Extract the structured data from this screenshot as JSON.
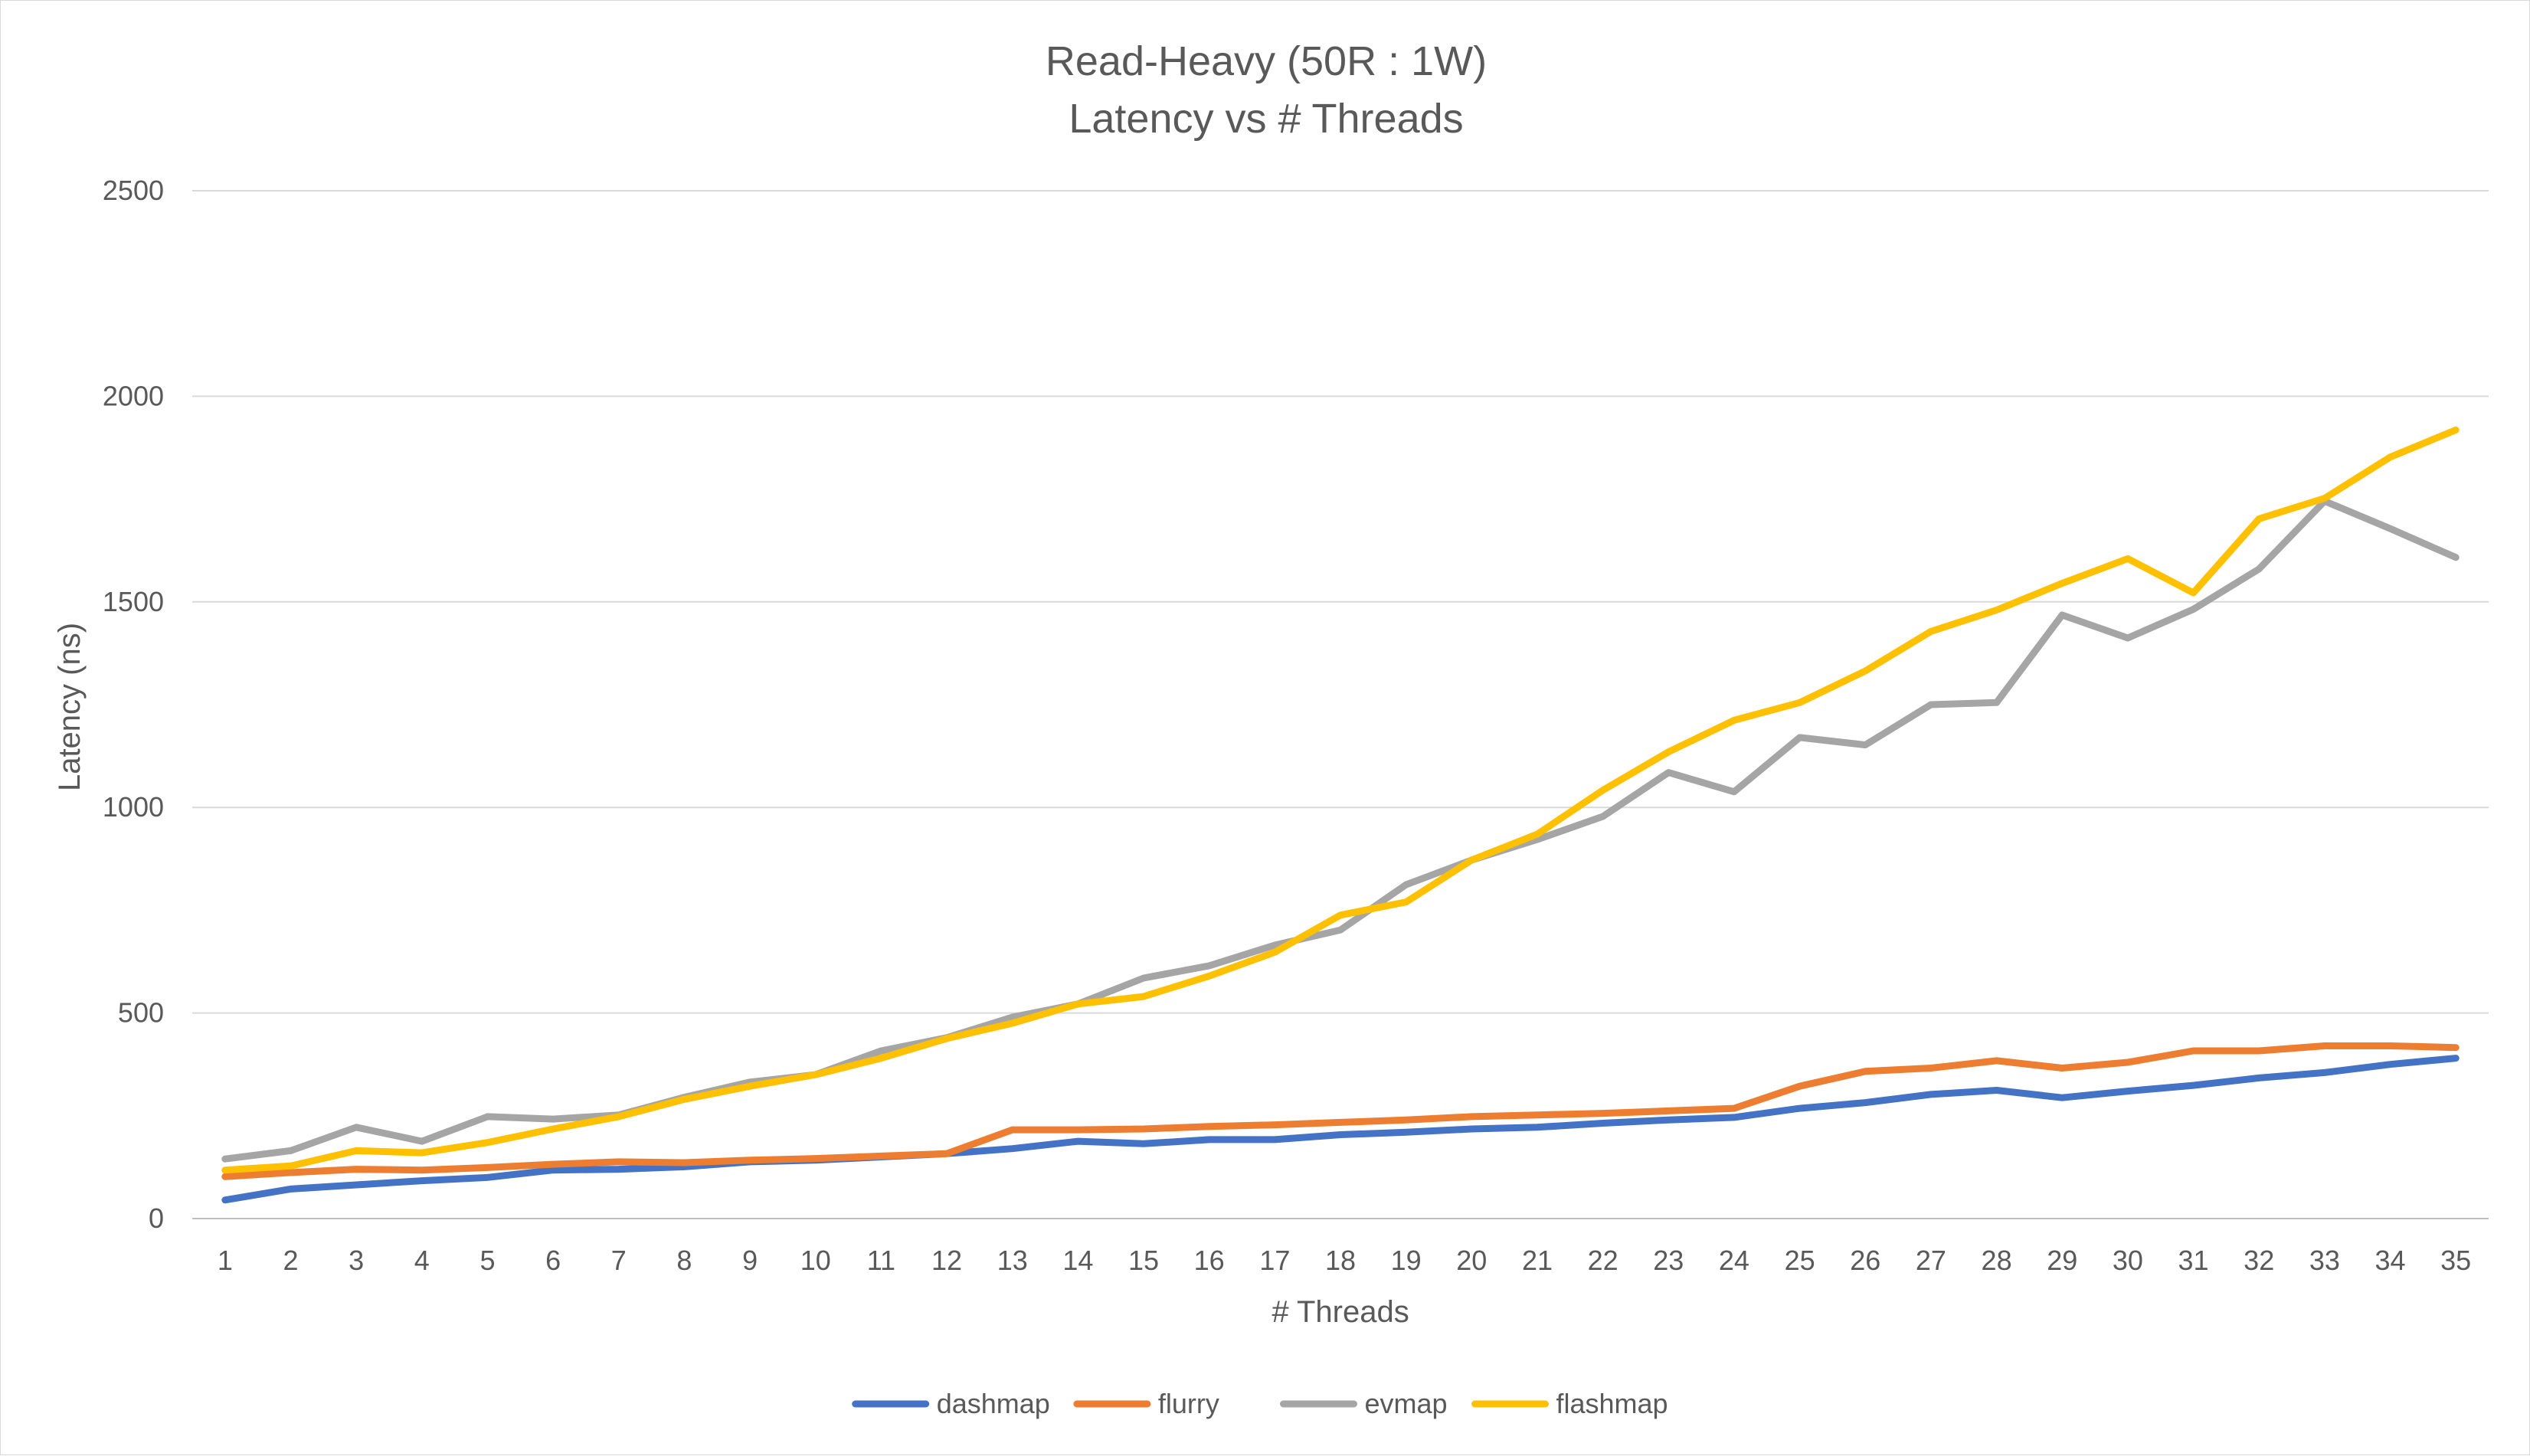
{
  "chart_data": {
    "type": "line",
    "title": "Read-Heavy (50R : 1W)",
    "subtitle": "Latency vs # Threads",
    "xlabel": "# Threads",
    "ylabel": "Latency (ns)",
    "ylim": [
      0,
      2500
    ],
    "yticks": [
      "0",
      "500",
      "1000",
      "1500",
      "2000",
      "2500"
    ],
    "grid": true,
    "legend_position": "bottom",
    "categories": [
      "1",
      "2",
      "3",
      "4",
      "5",
      "6",
      "7",
      "8",
      "9",
      "10",
      "11",
      "12",
      "13",
      "14",
      "15",
      "16",
      "17",
      "18",
      "19",
      "20",
      "21",
      "22",
      "23",
      "24",
      "25",
      "26",
      "27",
      "28",
      "29",
      "30",
      "31",
      "32",
      "33",
      "34",
      "35"
    ],
    "series": [
      {
        "name": "dashmap",
        "color": "#4472c4",
        "values": [
          45,
          72,
          82,
          92,
          100,
          118,
          120,
          126,
          138,
          142,
          150,
          158,
          170,
          188,
          182,
          192,
          192,
          204,
          210,
          218,
          222,
          232,
          240,
          246,
          268,
          282,
          302,
          312,
          294,
          310,
          324,
          342,
          355,
          375,
          390
        ]
      },
      {
        "name": "flurry",
        "color": "#ed7d31",
        "values": [
          102,
          112,
          120,
          118,
          124,
          132,
          138,
          136,
          142,
          146,
          152,
          158,
          216,
          216,
          218,
          224,
          228,
          234,
          240,
          248,
          252,
          256,
          262,
          268,
          322,
          358,
          366,
          384,
          366,
          380,
          408,
          408,
          420,
          420,
          416
        ]
      },
      {
        "name": "evmap",
        "color": "#a5a5a5",
        "values": [
          145,
          165,
          222,
          188,
          248,
          242,
          252,
          295,
          332,
          350,
          408,
          440,
          490,
          522,
          585,
          615,
          665,
          702,
          812,
          872,
          922,
          978,
          1085,
          1038,
          1170,
          1152,
          1250,
          1255,
          1468,
          1412,
          1482,
          1580,
          1745,
          1678,
          1608
        ]
      },
      {
        "name": "flashmap",
        "color": "#ffc000",
        "values": [
          118,
          128,
          165,
          160,
          185,
          218,
          248,
          290,
          322,
          350,
          390,
          438,
          475,
          522,
          540,
          590,
          648,
          738,
          770,
          872,
          935,
          1042,
          1135,
          1212,
          1255,
          1332,
          1428,
          1480,
          1545,
          1605,
          1522,
          1702,
          1752,
          1852,
          1918
        ]
      }
    ]
  }
}
